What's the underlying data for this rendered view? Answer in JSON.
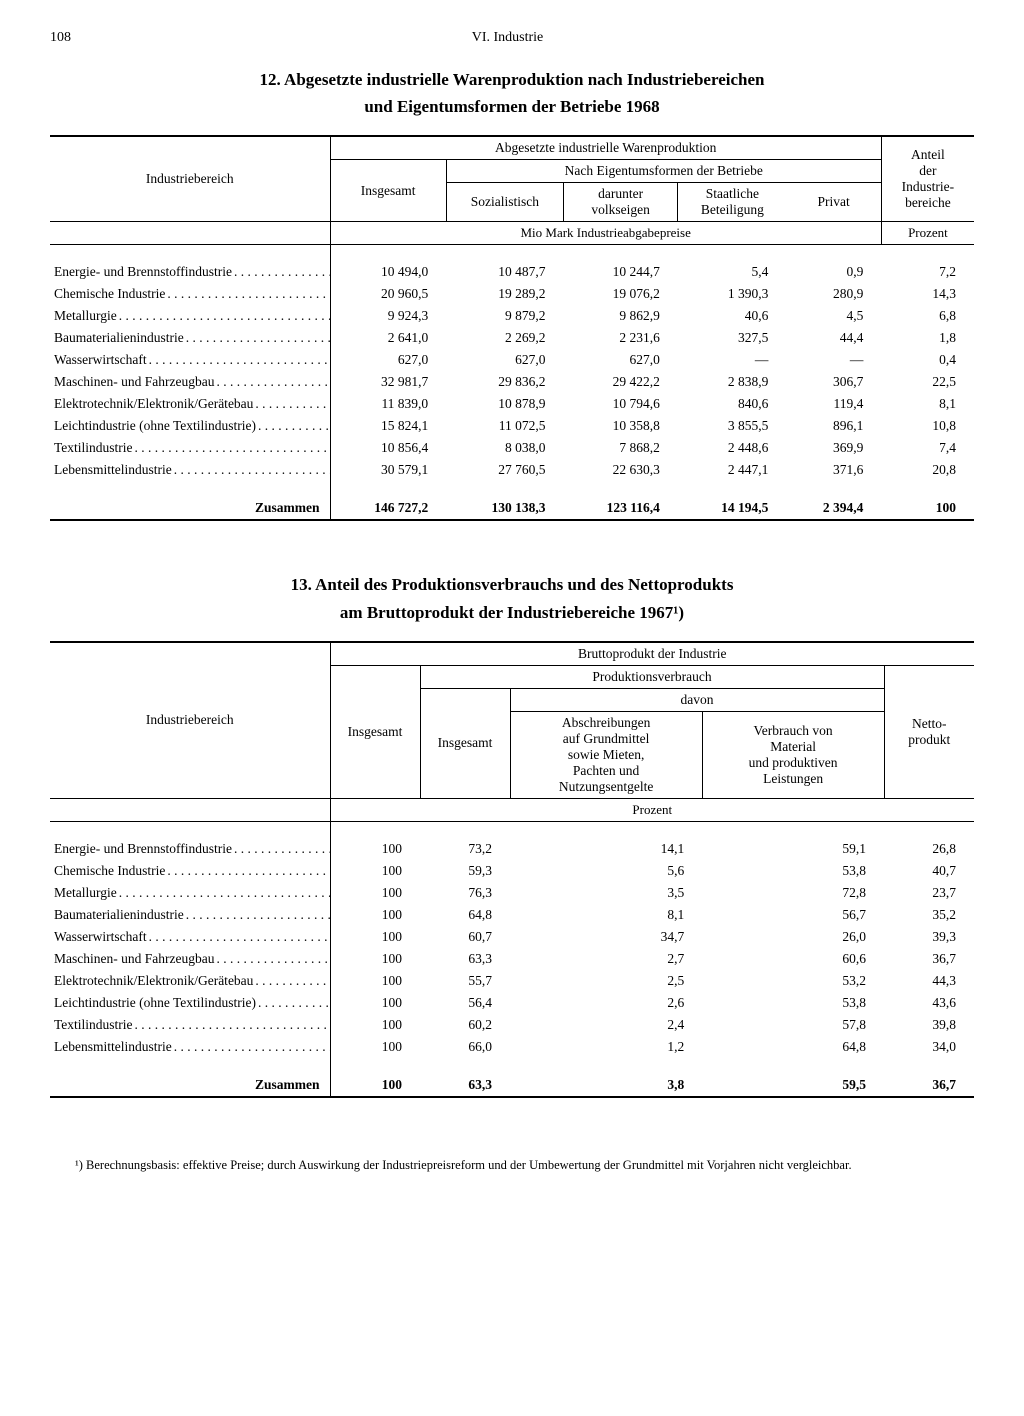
{
  "pageNumber": "108",
  "chapter": "VI. Industrie",
  "table12": {
    "title_line1": "12. Abgesetzte industrielle Warenproduktion nach Industriebereichen",
    "title_line2": "und Eigentumsformen der Betriebe 1968",
    "head": {
      "col_industry": "Industriebereich",
      "span_main": "Abgesetzte industrielle Warenproduktion",
      "col_total": "Insgesamt",
      "span_sub": "Nach Eigentumsformen der Betriebe",
      "col_soz": "Sozialistisch",
      "col_volks": "darunter\nvolkseigen",
      "col_staat": "Staatliche\nBeteiligung",
      "col_privat": "Privat",
      "col_anteil": "Anteil\nder\nIndustrie-\nbereiche",
      "unit_left": "Mio Mark Industrieabgabepreise",
      "unit_right": "Prozent"
    },
    "rows": [
      {
        "label": "Energie- und Brennstoffindustrie",
        "c": [
          "10 494,0",
          "10 487,7",
          "10 244,7",
          "5,4",
          "0,9",
          "7,2"
        ]
      },
      {
        "label": "Chemische Industrie",
        "c": [
          "20 960,5",
          "19 289,2",
          "19 076,2",
          "1 390,3",
          "280,9",
          "14,3"
        ]
      },
      {
        "label": "Metallurgie",
        "c": [
          "9 924,3",
          "9 879,2",
          "9 862,9",
          "40,6",
          "4,5",
          "6,8"
        ]
      },
      {
        "label": "Baumaterialienindustrie",
        "c": [
          "2 641,0",
          "2 269,2",
          "2 231,6",
          "327,5",
          "44,4",
          "1,8"
        ]
      },
      {
        "label": "Wasserwirtschaft",
        "c": [
          "627,0",
          "627,0",
          "627,0",
          "—",
          "—",
          "0,4"
        ]
      },
      {
        "label": "Maschinen- und Fahrzeugbau",
        "c": [
          "32 981,7",
          "29 836,2",
          "29 422,2",
          "2 838,9",
          "306,7",
          "22,5"
        ]
      },
      {
        "label": "Elektrotechnik/Elektronik/Gerätebau",
        "c": [
          "11 839,0",
          "10 878,9",
          "10 794,6",
          "840,6",
          "119,4",
          "8,1"
        ]
      },
      {
        "label": "Leichtindustrie (ohne Textilindustrie)",
        "c": [
          "15 824,1",
          "11 072,5",
          "10 358,8",
          "3 855,5",
          "896,1",
          "10,8"
        ]
      },
      {
        "label": "Textilindustrie",
        "c": [
          "10 856,4",
          "8 038,0",
          "7 868,2",
          "2 448,6",
          "369,9",
          "7,4"
        ]
      },
      {
        "label": "Lebensmittelindustrie",
        "c": [
          "30 579,1",
          "27 760,5",
          "22 630,3",
          "2 447,1",
          "371,6",
          "20,8"
        ]
      }
    ],
    "total": {
      "label": "Zusammen",
      "c": [
        "146 727,2",
        "130 138,3",
        "123 116,4",
        "14 194,5",
        "2 394,4",
        "100"
      ]
    }
  },
  "table13": {
    "title_line1": "13. Anteil des Produktionsverbrauchs und des Nettoprodukts",
    "title_line2": "am Bruttoprodukt der Industriebereiche 1967¹)",
    "head": {
      "col_industry": "Industriebereich",
      "span_main": "Bruttoprodukt der Industrie",
      "col_total": "Insgesamt",
      "span_verbrauch": "Produktionsverbrauch",
      "col_verbrauch_total": "Insgesamt",
      "span_davon": "davon",
      "col_absch": "Abschreibungen\nauf Grundmittel\nsowie Mieten,\nPachten und\nNutzungsentgelte",
      "col_material": "Verbrauch von\nMaterial\nund produktiven\nLeistungen",
      "col_netto": "Netto-\nprodukt",
      "unit": "Prozent"
    },
    "rows": [
      {
        "label": "Energie- und Brennstoffindustrie",
        "c": [
          "100",
          "73,2",
          "14,1",
          "59,1",
          "26,8"
        ]
      },
      {
        "label": "Chemische Industrie",
        "c": [
          "100",
          "59,3",
          "5,6",
          "53,8",
          "40,7"
        ]
      },
      {
        "label": "Metallurgie",
        "c": [
          "100",
          "76,3",
          "3,5",
          "72,8",
          "23,7"
        ]
      },
      {
        "label": "Baumaterialienindustrie",
        "c": [
          "100",
          "64,8",
          "8,1",
          "56,7",
          "35,2"
        ]
      },
      {
        "label": "Wasserwirtschaft",
        "c": [
          "100",
          "60,7",
          "34,7",
          "26,0",
          "39,3"
        ]
      },
      {
        "label": "Maschinen- und Fahrzeugbau",
        "c": [
          "100",
          "63,3",
          "2,7",
          "60,6",
          "36,7"
        ]
      },
      {
        "label": "Elektrotechnik/Elektronik/Gerätebau",
        "c": [
          "100",
          "55,7",
          "2,5",
          "53,2",
          "44,3"
        ]
      },
      {
        "label": "Leichtindustrie (ohne Textilindustrie)",
        "c": [
          "100",
          "56,4",
          "2,6",
          "53,8",
          "43,6"
        ]
      },
      {
        "label": "Textilindustrie",
        "c": [
          "100",
          "60,2",
          "2,4",
          "57,8",
          "39,8"
        ]
      },
      {
        "label": "Lebensmittelindustrie",
        "c": [
          "100",
          "66,0",
          "1,2",
          "64,8",
          "34,0"
        ]
      }
    ],
    "total": {
      "label": "Zusammen",
      "c": [
        "100",
        "63,3",
        "3,8",
        "59,5",
        "36,7"
      ]
    }
  },
  "footnote": "¹) Berechnungsbasis: effektive Preise; durch Auswirkung der Industriepreisreform und der Umbewertung der Grundmittel mit Vorjahren nicht vergleichbar."
}
